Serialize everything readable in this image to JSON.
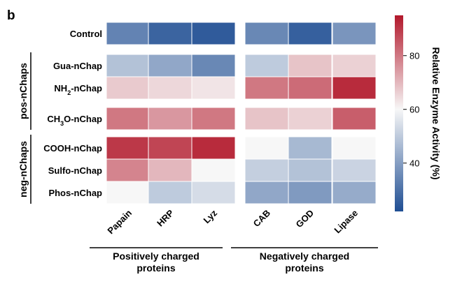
{
  "chart_data": {
    "type": "heatmap",
    "panel_label": "b",
    "rows": [
      "Control",
      "Gua-nChap",
      "NH2-nChap",
      "CH3O-nChap",
      "COOH-nChap",
      "Sulfo-nChap",
      "Phos-nChap"
    ],
    "row_labels": [
      {
        "main": "Control",
        "sub": "",
        "tail": ""
      },
      {
        "main": "Gua-nChap",
        "sub": "",
        "tail": ""
      },
      {
        "main": "NH",
        "sub": "2",
        "tail": "-nChap"
      },
      {
        "main": "CH",
        "sub": "3",
        "tail": "O-nChap"
      },
      {
        "main": "COOH-nChap",
        "sub": "",
        "tail": ""
      },
      {
        "main": "Sulfo-nChap",
        "sub": "",
        "tail": ""
      },
      {
        "main": "Phos-nChap",
        "sub": "",
        "tail": ""
      }
    ],
    "row_groups": [
      {
        "label": "pos-nChaps",
        "rows": [
          "Gua-nChap",
          "NH2-nChap",
          "CH3O-nChap"
        ]
      },
      {
        "label": "neg-nChaps",
        "rows": [
          "COOH-nChap",
          "Sulfo-nChap",
          "Phos-nChap"
        ]
      }
    ],
    "columns": [
      "Papain",
      "HRP",
      "Lyz",
      "CAB",
      "GOD",
      "Lipase"
    ],
    "column_groups": [
      {
        "label_lines": [
          "Positively charged",
          "proteins"
        ],
        "columns": [
          "Papain",
          "HRP",
          "Lyz"
        ]
      },
      {
        "label_lines": [
          "Negatively charged",
          "proteins"
        ],
        "columns": [
          "CAB",
          "GOD",
          "Lipase"
        ]
      }
    ],
    "values": [
      [
        34,
        27,
        25,
        35,
        26,
        38
      ],
      [
        48,
        42,
        35,
        50,
        68,
        66
      ],
      [
        67,
        65,
        63,
        80,
        82,
        92
      ],
      [
        80,
        75,
        80,
        68,
        66,
        84
      ],
      [
        90,
        88,
        92,
        60,
        46,
        60
      ],
      [
        78,
        70,
        60,
        51,
        48,
        52
      ],
      [
        60,
        50,
        54,
        42,
        39,
        43
      ]
    ],
    "colorbar": {
      "label": "Relative Enzyme Activity (%)",
      "min": 22,
      "max": 95,
      "ticks": [
        40,
        60,
        80
      ],
      "low_color": "#1f4e93",
      "mid_color": "#f7f7f7",
      "high_color": "#b2182b"
    }
  }
}
